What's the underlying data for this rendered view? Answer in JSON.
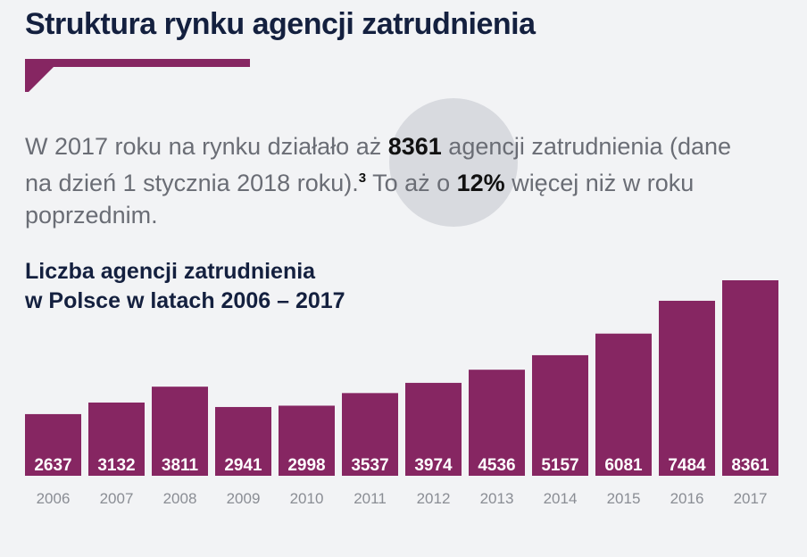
{
  "heading": "Struktura rynku agencji zatrudnienia",
  "intro": {
    "part1": "W 2017 roku na rynku działało aż ",
    "bold1": "8361",
    "part2": " agencji zatrudnienia (dane na dzień 1 stycznia 2018 roku).",
    "footnote": "3",
    "part3": " To aż o ",
    "bold2": "12%",
    "part4": " więcej niż w roku poprzednim."
  },
  "colors": {
    "bar": "#862662",
    "accent": "#862662",
    "heading": "#14203f",
    "circle": "#d8dadf"
  },
  "chart_data": {
    "type": "bar",
    "title_line1": "Liczba agencji zatrudnienia",
    "title_line2": "w Polsce w latach 2006 – 2017",
    "categories": [
      "2006",
      "2007",
      "2008",
      "2009",
      "2010",
      "2011",
      "2012",
      "2013",
      "2014",
      "2015",
      "2016",
      "2017"
    ],
    "values": [
      2637,
      3132,
      3811,
      2941,
      2998,
      3537,
      3974,
      4536,
      5157,
      6081,
      7484,
      8361
    ],
    "data_labels": true,
    "grid": false,
    "legend": "none"
  }
}
